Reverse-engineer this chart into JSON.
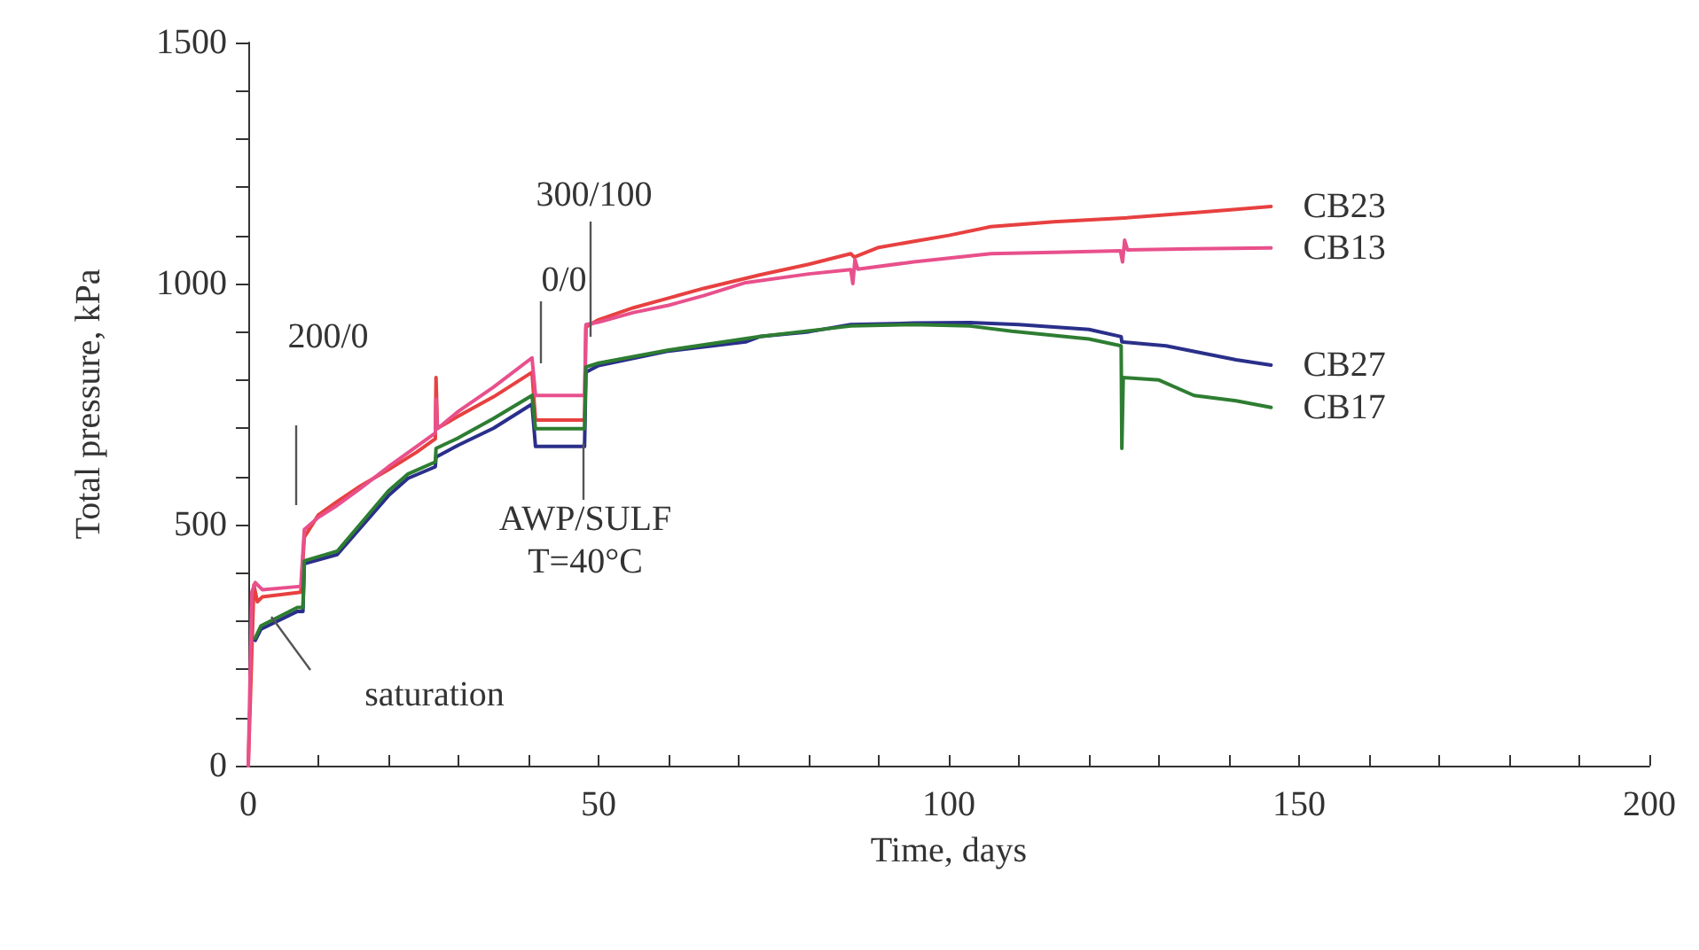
{
  "chart_data": {
    "type": "line",
    "xlabel": "Time, days",
    "ylabel": "Total pressure, kPa",
    "xlim": [
      0,
      200
    ],
    "xticks": [
      0,
      {
        "value": 10,
        "label": null
      },
      {
        "value": 20,
        "label": null
      },
      {
        "value": 30,
        "label": null
      },
      {
        "value": 40,
        "label": null
      },
      50,
      {
        "value": 60,
        "label": null
      },
      {
        "value": 70,
        "label": null
      },
      {
        "value": 80,
        "label": null
      },
      {
        "value": 90,
        "label": null
      },
      100,
      {
        "value": 110,
        "label": null
      },
      {
        "value": 120,
        "label": null
      },
      {
        "value": 130,
        "label": null
      },
      {
        "value": 140,
        "label": null
      },
      150,
      {
        "value": 160,
        "label": null
      },
      {
        "value": 170,
        "label": null
      },
      {
        "value": 180,
        "label": null
      },
      {
        "value": 190,
        "label": null
      },
      200
    ],
    "ylim": [
      0,
      1500
    ],
    "yticks": [
      0,
      {
        "value": 100,
        "label": null
      },
      {
        "value": 200,
        "label": null
      },
      {
        "value": 300,
        "label": null
      },
      {
        "value": 400,
        "label": null
      },
      500,
      {
        "value": 600,
        "label": null
      },
      {
        "value": 700,
        "label": null
      },
      {
        "value": 800,
        "label": null
      },
      {
        "value": 900,
        "label": null
      },
      1000,
      {
        "value": 1100,
        "label": null
      },
      {
        "value": 1200,
        "label": null
      },
      {
        "value": 1300,
        "label": null
      },
      {
        "value": 1400,
        "label": null
      },
      1500
    ],
    "grid": false,
    "legend": false,
    "marker": "none",
    "line_style": "solid",
    "series": [
      {
        "name": "CB23",
        "color": "#e84040",
        "x": [
          0,
          0.8,
          1.3,
          2,
          7.5,
          8,
          10,
          12.7,
          16,
          20,
          24,
          26.7,
          26.8,
          27,
          30,
          35,
          40.5,
          41,
          48,
          48.2,
          50,
          55,
          60,
          65,
          73,
          80,
          86,
          86.5,
          90,
          100,
          106,
          115,
          125,
          135,
          141,
          146
        ],
        "values": [
          0,
          375,
          340,
          350,
          360,
          474,
          520,
          548,
          580,
          614,
          650,
          678,
          805,
          700,
          725,
          765,
          816,
          717,
          717,
          910,
          925,
          950,
          970,
          990,
          1018,
          1040,
          1062,
          1055,
          1075,
          1100,
          1118,
          1128,
          1136,
          1147,
          1154,
          1160
        ]
      },
      {
        "name": "CB13",
        "color": "#e8508c",
        "x": [
          0,
          0.5,
          1,
          2,
          7.5,
          8,
          10,
          12.7,
          16,
          20,
          26.7,
          26.8,
          27,
          30,
          35,
          40.5,
          41,
          48,
          48.2,
          50,
          55,
          60,
          65,
          71,
          80,
          86,
          86.3,
          86.6,
          87,
          95,
          106,
          115,
          124.5,
          124.8,
          125.1,
          125.5,
          135,
          146
        ],
        "values": [
          0,
          360,
          380,
          365,
          372,
          490,
          515,
          540,
          575,
          620,
          690,
          760,
          699,
          735,
          785,
          846,
          768,
          768,
          915,
          920,
          940,
          955,
          975,
          1002,
          1020,
          1029,
          1000,
          1050,
          1030,
          1045,
          1062,
          1065,
          1068,
          1045,
          1090,
          1070,
          1072,
          1074
        ]
      },
      {
        "name": "CB27",
        "color": "#2a2f8a",
        "x": [
          1,
          1.8,
          7,
          7.8,
          8,
          12.7,
          20,
          22.8,
          26.7,
          26.8,
          30,
          35,
          40.5,
          41,
          48,
          48.2,
          50,
          55,
          60,
          71,
          73,
          80,
          86,
          95,
          103,
          110,
          120,
          124.6,
          124.7,
          131,
          141,
          146
        ],
        "values": [
          260,
          283,
          320,
          320,
          419,
          438,
          560,
          596,
          620,
          640,
          665,
          700,
          750,
          662,
          662,
          816,
          830,
          845,
          860,
          879,
          890,
          900,
          915,
          918,
          919,
          915,
          905,
          890,
          879,
          871,
          842,
          831
        ]
      },
      {
        "name": "CB17",
        "color": "#2e7d32",
        "x": [
          1,
          1.8,
          7,
          7.8,
          8,
          12.7,
          20,
          22.8,
          26.7,
          26.8,
          30,
          35,
          40.5,
          41,
          48,
          48.2,
          50,
          60,
          73,
          86,
          95,
          103,
          109,
          120,
          124.6,
          124.7,
          124.9,
          130,
          135,
          141,
          146
        ],
        "values": [
          265,
          290,
          328,
          328,
          425,
          445,
          570,
          605,
          630,
          658,
          680,
          720,
          768,
          699,
          699,
          827,
          835,
          862,
          890,
          912,
          915,
          912,
          901,
          885,
          871,
          658,
          805,
          800,
          768,
          757,
          743
        ]
      }
    ],
    "annotations": [
      "200/0",
      "0/0",
      "300/100",
      "AWP/SULF\nT=40°C",
      "saturation"
    ]
  }
}
